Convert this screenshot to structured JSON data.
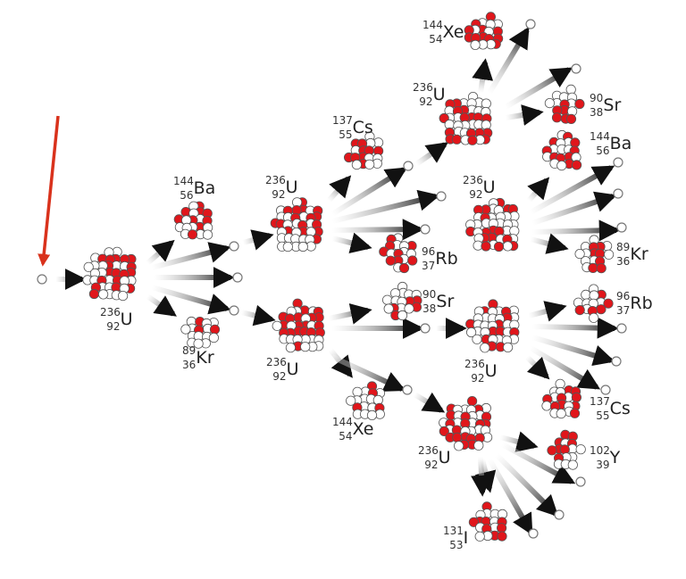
{
  "colors": {
    "proton": "#e0161b",
    "neutron_fill": "#ffffff",
    "outline": "#555555",
    "incoming_arrow": "#d9321c",
    "arrow": "#111111"
  },
  "nuclides": [
    {
      "id": "u1",
      "mass": "236",
      "z": "92",
      "symbol": "U"
    },
    {
      "id": "ba1",
      "mass": "144",
      "z": "56",
      "symbol": "Ba"
    },
    {
      "id": "kr1",
      "mass": "89",
      "z": "36",
      "symbol": "Kr"
    },
    {
      "id": "u2",
      "mass": "236",
      "z": "92",
      "symbol": "U"
    },
    {
      "id": "u3",
      "mass": "236",
      "z": "92",
      "symbol": "U"
    },
    {
      "id": "cs1",
      "mass": "137",
      "z": "55",
      "symbol": "Cs"
    },
    {
      "id": "rb1",
      "mass": "96",
      "z": "37",
      "symbol": "Rb"
    },
    {
      "id": "xe1",
      "mass": "144",
      "z": "54",
      "symbol": "Xe"
    },
    {
      "id": "u4",
      "mass": "236",
      "z": "92",
      "symbol": "U"
    },
    {
      "id": "u5",
      "mass": "236",
      "z": "92",
      "symbol": "U"
    },
    {
      "id": "sr1",
      "mass": "90",
      "z": "38",
      "symbol": "Sr"
    },
    {
      "id": "u6",
      "mass": "236",
      "z": "92",
      "symbol": "U"
    },
    {
      "id": "u7",
      "mass": "236",
      "z": "92",
      "symbol": "U"
    },
    {
      "id": "xe2",
      "mass": "144",
      "z": "54",
      "symbol": "Xe"
    },
    {
      "id": "sr2",
      "mass": "90",
      "z": "38",
      "symbol": "Sr"
    },
    {
      "id": "ba2",
      "mass": "144",
      "z": "56",
      "symbol": "Ba"
    },
    {
      "id": "kr2",
      "mass": "89",
      "z": "36",
      "symbol": "Kr"
    },
    {
      "id": "rb2",
      "mass": "96",
      "z": "37",
      "symbol": "Rb"
    },
    {
      "id": "cs2",
      "mass": "137",
      "z": "55",
      "symbol": "Cs"
    },
    {
      "id": "y1",
      "mass": "102",
      "z": "39",
      "symbol": "Y"
    },
    {
      "id": "i1",
      "mass": "131",
      "z": "53",
      "symbol": "I"
    }
  ]
}
